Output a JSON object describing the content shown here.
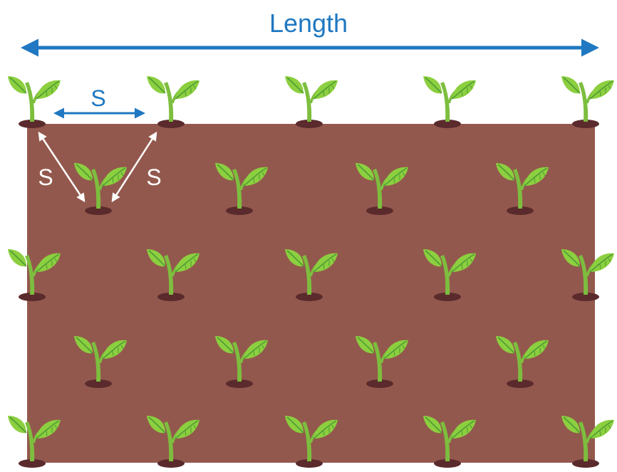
{
  "labels": {
    "length": "Length",
    "spacing_top": "S",
    "spacing_diag_left": "S",
    "spacing_diag_right": "S"
  },
  "colors": {
    "soil": "#93584d",
    "soil_mound": "#5a2a2c",
    "leaf_light": "#8ccf3f",
    "leaf_dark": "#4a9a35",
    "stem": "#7dbe3e",
    "arrow_blue": "#1f78c1",
    "arrow_white": "#ffffff",
    "label_white": "#ffffff"
  },
  "layout_description": {
    "rows": 5,
    "pattern": "staggered",
    "seedlings_per_full_row": 5,
    "seedlings_per_offset_row": 4
  }
}
